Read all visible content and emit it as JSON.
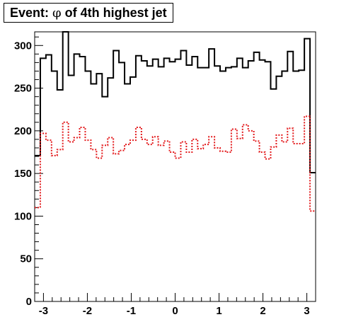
{
  "chart_data": {
    "type": "histogram",
    "title_parts": {
      "prefix": "Event: ",
      "symbol": "φ",
      "suffix": " of 4th highest jet"
    },
    "xlabel": "",
    "ylabel": "",
    "xlim": [
      -3.2,
      3.2
    ],
    "ylim": [
      0,
      316
    ],
    "x_ticks": [
      -3,
      -2,
      -1,
      0,
      1,
      2,
      3
    ],
    "x_tick_labels": [
      "-3",
      "-2",
      "-1",
      "0",
      "1",
      "2",
      "3"
    ],
    "y_ticks": [
      0,
      50,
      100,
      150,
      200,
      250,
      300
    ],
    "y_tick_labels": [
      "0",
      "50",
      "100",
      "150",
      "200",
      "250",
      "300"
    ],
    "bin_edges_range": [
      -3.2,
      3.2
    ],
    "series": [
      {
        "color": "#000000",
        "style": "solid",
        "values": [
          171,
          285,
          289,
          270,
          248,
          316,
          265,
          290,
          287,
          270,
          255,
          267,
          240,
          262,
          294,
          280,
          255,
          263,
          288,
          282,
          276,
          284,
          275,
          285,
          281,
          284,
          294,
          277,
          287,
          274,
          274,
          296,
          276,
          270,
          274,
          275,
          285,
          274,
          282,
          292,
          283,
          281,
          249,
          264,
          270,
          293,
          270,
          271,
          308,
          151
        ]
      },
      {
        "color": "#e31a1c",
        "style": "dotted",
        "values": [
          110,
          197,
          189,
          171,
          178,
          210,
          187,
          192,
          204,
          189,
          178,
          168,
          183,
          192,
          173,
          177,
          184,
          189,
          204,
          190,
          184,
          193,
          183,
          188,
          175,
          168,
          187,
          175,
          190,
          179,
          184,
          193,
          180,
          176,
          175,
          202,
          191,
          207,
          200,
          188,
          175,
          167,
          181,
          195,
          187,
          203,
          185,
          185,
          217,
          106
        ]
      }
    ]
  }
}
